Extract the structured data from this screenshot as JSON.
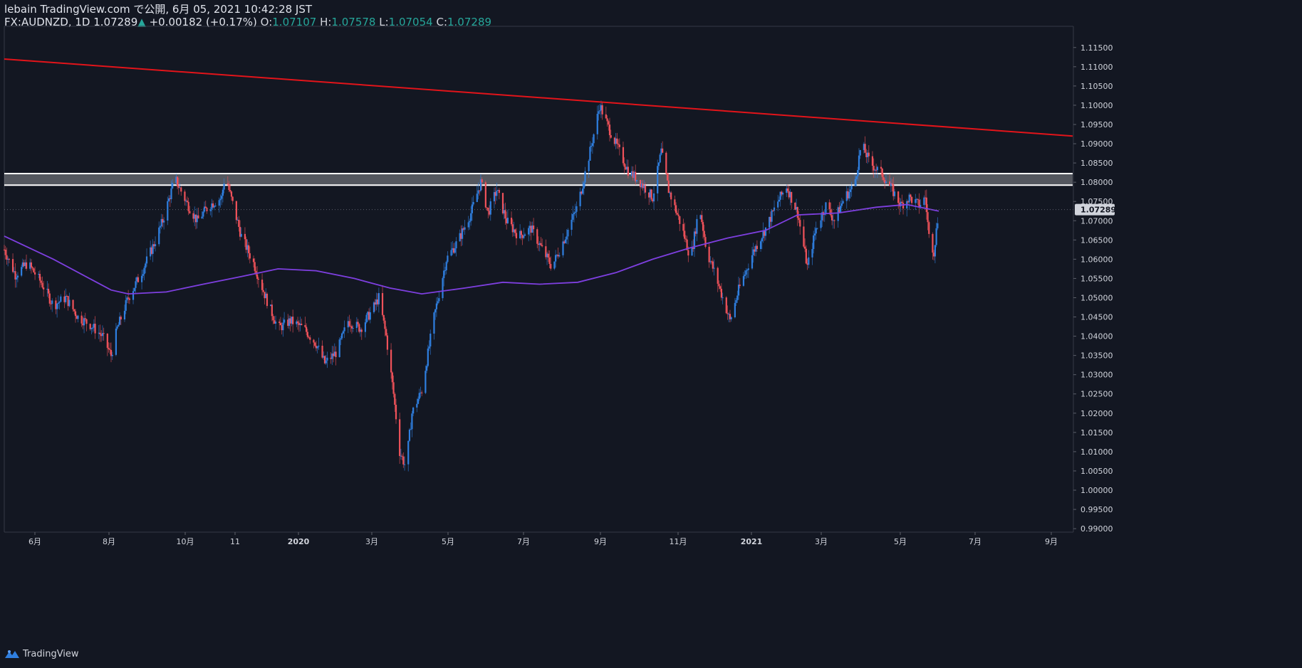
{
  "header": {
    "published": "lebain TradingView.com で公開, 6月 05, 2021 10:42:28 JST",
    "symbol": "FX:AUDNZD, 1D",
    "last": "1.07289",
    "up_arrow": "▲",
    "change": "+0.00182 (+0.17%)",
    "o_label": "O:",
    "o_value": "1.07107",
    "h_label": "H:",
    "h_value": "1.07578",
    "l_label": "L:",
    "l_value": "1.07054",
    "c_label": "C:",
    "c_value": "1.07289"
  },
  "footer": {
    "brand": "TradingView",
    "logo_icon": "tradingview-logo-icon"
  },
  "colors": {
    "background": "#131722",
    "bull": "#2f7fe0",
    "bear": "#f0525a",
    "ma": "#7e3fe0",
    "trendline": "#e3141a",
    "zone": "#ffffff",
    "axis_text": "#d1d4dc",
    "last_tag": "#d1d4dc"
  },
  "chart_data": {
    "type": "candlestick",
    "symbol": "FX:AUDNZD",
    "interval": "1D",
    "x_axis_labels": [
      "6月",
      "8月",
      "10月",
      "11",
      "2020",
      "3月",
      "5月",
      "7月",
      "9月",
      "11月",
      "2021",
      "3月",
      "5月",
      "7月",
      "9月"
    ],
    "y_ticks": [
      "1.11500",
      "1.11000",
      "1.10500",
      "1.10000",
      "1.09500",
      "1.09000",
      "1.08500",
      "1.08000",
      "1.07500",
      "1.07000",
      "1.06500",
      "1.06000",
      "1.05500",
      "1.05000",
      "1.04500",
      "1.04000",
      "1.03500",
      "1.03000",
      "1.02500",
      "1.02000",
      "1.01500",
      "1.01000",
      "1.00500",
      "1.00000",
      "0.99500",
      "0.99000"
    ],
    "ylim": [
      0.9891,
      1.1205
    ],
    "last_price": "1.07289",
    "price_path": [
      [
        "2019-05-06",
        1.0625
      ],
      [
        "2019-05-15",
        1.056
      ],
      [
        "2019-05-25",
        1.059
      ],
      [
        "2019-06-05",
        1.054
      ],
      [
        "2019-06-15",
        1.048
      ],
      [
        "2019-06-25",
        1.05
      ],
      [
        "2019-07-05",
        1.045
      ],
      [
        "2019-07-15",
        1.043
      ],
      [
        "2019-07-25",
        1.04
      ],
      [
        "2019-08-01",
        1.035
      ],
      [
        "2019-08-06",
        1.042
      ],
      [
        "2019-08-15",
        1.05
      ],
      [
        "2019-08-25",
        1.056
      ],
      [
        "2019-09-05",
        1.064
      ],
      [
        "2019-09-12",
        1.07
      ],
      [
        "2019-09-22",
        1.081
      ],
      [
        "2019-10-01",
        1.075
      ],
      [
        "2019-10-10",
        1.07
      ],
      [
        "2019-10-20",
        1.074
      ],
      [
        "2019-10-30",
        1.076
      ],
      [
        "2019-11-02",
        1.0825
      ],
      [
        "2019-11-05",
        1.078
      ],
      [
        "2019-11-15",
        1.066
      ],
      [
        "2019-11-25",
        1.059
      ],
      [
        "2019-12-05",
        1.05
      ],
      [
        "2019-12-15",
        1.042
      ],
      [
        "2019-12-25",
        1.044
      ],
      [
        "2020-01-05",
        1.042
      ],
      [
        "2020-01-15",
        1.038
      ],
      [
        "2020-01-22",
        1.033
      ],
      [
        "2020-02-01",
        1.036
      ],
      [
        "2020-02-10",
        1.044
      ],
      [
        "2020-02-20",
        1.042
      ],
      [
        "2020-03-01",
        1.047
      ],
      [
        "2020-03-06",
        1.05
      ],
      [
        "2020-03-12",
        1.04
      ],
      [
        "2020-03-18",
        1.025
      ],
      [
        "2020-03-23",
        1.01
      ],
      [
        "2020-03-28",
        1.006
      ],
      [
        "2020-04-02",
        1.02
      ],
      [
        "2020-04-10",
        1.026
      ],
      [
        "2020-04-20",
        1.045
      ],
      [
        "2020-04-30",
        1.06
      ],
      [
        "2020-05-10",
        1.065
      ],
      [
        "2020-05-20",
        1.072
      ],
      [
        "2020-05-28",
        1.08
      ],
      [
        "2020-06-03",
        1.072
      ],
      [
        "2020-06-10",
        1.078
      ],
      [
        "2020-06-18",
        1.07
      ],
      [
        "2020-06-28",
        1.066
      ],
      [
        "2020-07-08",
        1.068
      ],
      [
        "2020-07-18",
        1.062
      ],
      [
        "2020-07-25",
        1.058
      ],
      [
        "2020-08-05",
        1.066
      ],
      [
        "2020-08-15",
        1.074
      ],
      [
        "2020-08-25",
        1.088
      ],
      [
        "2020-09-02",
        1.1
      ],
      [
        "2020-09-08",
        1.095
      ],
      [
        "2020-09-15",
        1.09
      ],
      [
        "2020-09-25",
        1.083
      ],
      [
        "2020-10-05",
        1.08
      ],
      [
        "2020-10-15",
        1.076
      ],
      [
        "2020-10-22",
        1.088
      ],
      [
        "2020-10-28",
        1.078
      ],
      [
        "2020-11-08",
        1.068
      ],
      [
        "2020-11-15",
        1.06
      ],
      [
        "2020-11-22",
        1.074
      ],
      [
        "2020-11-28",
        1.062
      ],
      [
        "2020-12-05",
        1.056
      ],
      [
        "2020-12-12",
        1.049
      ],
      [
        "2020-12-17",
        1.044
      ],
      [
        "2020-12-24",
        1.052
      ],
      [
        "2021-01-05",
        1.062
      ],
      [
        "2021-01-15",
        1.068
      ],
      [
        "2021-01-25",
        1.075
      ],
      [
        "2021-02-01",
        1.079
      ],
      [
        "2021-02-10",
        1.072
      ],
      [
        "2021-02-18",
        1.058
      ],
      [
        "2021-02-25",
        1.068
      ],
      [
        "2021-03-05",
        1.074
      ],
      [
        "2021-03-12",
        1.07
      ],
      [
        "2021-03-20",
        1.076
      ],
      [
        "2021-03-28",
        1.079
      ],
      [
        "2021-04-03",
        1.09
      ],
      [
        "2021-04-10",
        1.085
      ],
      [
        "2021-04-20",
        1.082
      ],
      [
        "2021-04-28",
        1.078
      ],
      [
        "2021-05-05",
        1.074
      ],
      [
        "2021-05-12",
        1.076
      ],
      [
        "2021-05-20",
        1.074
      ],
      [
        "2021-05-25",
        1.076
      ],
      [
        "2021-05-28",
        1.066
      ],
      [
        "2021-06-01",
        1.062
      ],
      [
        "2021-06-05",
        1.07289
      ]
    ],
    "moving_average": [
      [
        "2019-05-06",
        1.066
      ],
      [
        "2019-06-15",
        1.06
      ],
      [
        "2019-08-01",
        1.052
      ],
      [
        "2019-08-15",
        1.051
      ],
      [
        "2019-09-15",
        1.0515
      ],
      [
        "2019-10-15",
        1.0535
      ],
      [
        "2019-11-15",
        1.0555
      ],
      [
        "2019-12-15",
        1.0575
      ],
      [
        "2020-01-15",
        1.057
      ],
      [
        "2020-02-15",
        1.055
      ],
      [
        "2020-03-15",
        1.0525
      ],
      [
        "2020-04-10",
        1.051
      ],
      [
        "2020-05-15",
        1.0525
      ],
      [
        "2020-06-15",
        1.054
      ],
      [
        "2020-07-15",
        1.0535
      ],
      [
        "2020-08-15",
        1.054
      ],
      [
        "2020-09-15",
        1.0565
      ],
      [
        "2020-10-15",
        1.06
      ],
      [
        "2020-11-15",
        1.063
      ],
      [
        "2020-12-15",
        1.0655
      ],
      [
        "2021-01-15",
        1.0675
      ],
      [
        "2021-02-10",
        1.0715
      ],
      [
        "2021-03-15",
        1.072
      ],
      [
        "2021-04-15",
        1.0735
      ],
      [
        "2021-05-10",
        1.0742
      ],
      [
        "2021-06-05",
        1.0725
      ]
    ],
    "resistance_zone": [
      1.07925,
      1.08225
    ],
    "trendline": [
      [
        "2019-05-06",
        1.112
      ],
      [
        "2021-09-22",
        1.092
      ]
    ],
    "xlim": [
      "2019-05-06",
      "2021-09-22"
    ]
  }
}
